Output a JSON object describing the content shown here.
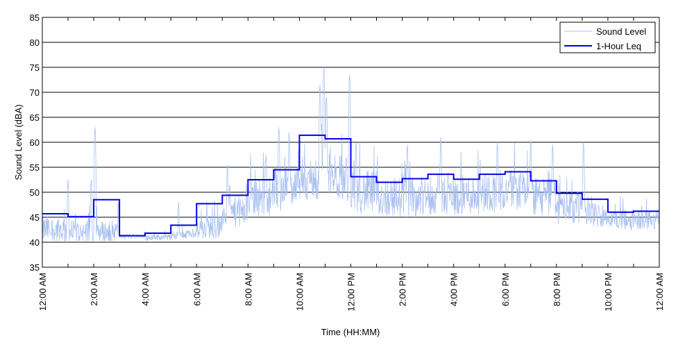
{
  "chart_data": {
    "type": "line",
    "title": "",
    "xlabel": "Time (HH:MM)",
    "ylabel": "Sound Level (dBA)",
    "ylim": [
      35,
      85
    ],
    "xlim": [
      0,
      24
    ],
    "x_unit": "hours since 12:00 AM",
    "yticks": [
      35,
      40,
      45,
      50,
      55,
      60,
      65,
      70,
      75,
      80,
      85
    ],
    "xticks": [
      0,
      2,
      4,
      6,
      8,
      10,
      12,
      14,
      16,
      18,
      20,
      22,
      24
    ],
    "xtick_labels": [
      "12:00 AM",
      "2:00 AM",
      "4:00 AM",
      "6:00 AM",
      "8:00 AM",
      "10:00 AM",
      "12:00 PM",
      "2:00 PM",
      "4:00 PM",
      "6:00 PM",
      "8:00 PM",
      "10:00 PM",
      "12:00 AM"
    ],
    "grid": "horizontal",
    "legend_position": "top-right",
    "series": [
      {
        "name": "Sound Level",
        "color": "#a8c0f0",
        "hourly_baseline": [
          42.5,
          42,
          42,
          41.2,
          41,
          41.5,
          43,
          46,
          49,
          51,
          52.5,
          53,
          50,
          49,
          49,
          49.5,
          49.5,
          50,
          50.5,
          49,
          47,
          45.5,
          44.5,
          44.5
        ],
        "hourly_spread": [
          3.5,
          3,
          3,
          0.6,
          0.8,
          1,
          3,
          4,
          5,
          5.5,
          6,
          6,
          5.5,
          5,
          5,
          5,
          5,
          5,
          5,
          5,
          4,
          3,
          2.5,
          2.5
        ],
        "spikes": [
          [
            1.0,
            52.5
          ],
          [
            1.9,
            52.5
          ],
          [
            2.05,
            63
          ],
          [
            2.95,
            48
          ],
          [
            5.3,
            48
          ],
          [
            7.2,
            55.5
          ],
          [
            8.7,
            57.5
          ],
          [
            9.2,
            63
          ],
          [
            9.6,
            62
          ],
          [
            10.8,
            71.5
          ],
          [
            10.95,
            75
          ],
          [
            11.05,
            69
          ],
          [
            11.95,
            73.5
          ],
          [
            12.2,
            60
          ],
          [
            14.2,
            59.5
          ],
          [
            15.5,
            61
          ],
          [
            17.7,
            60
          ],
          [
            19.0,
            60.5
          ],
          [
            19.85,
            59.5
          ],
          [
            21.05,
            60
          ]
        ]
      },
      {
        "name": "1-Hour Leq",
        "color": "#0000ee",
        "values": [
          45.7,
          45.1,
          48.5,
          41.3,
          41.8,
          43.4,
          47.7,
          49.4,
          52.5,
          54.5,
          61.4,
          60.7,
          53.1,
          52.0,
          52.7,
          53.6,
          52.6,
          53.6,
          54.1,
          52.3,
          49.8,
          48.6,
          46.0,
          46.2
        ]
      }
    ]
  }
}
